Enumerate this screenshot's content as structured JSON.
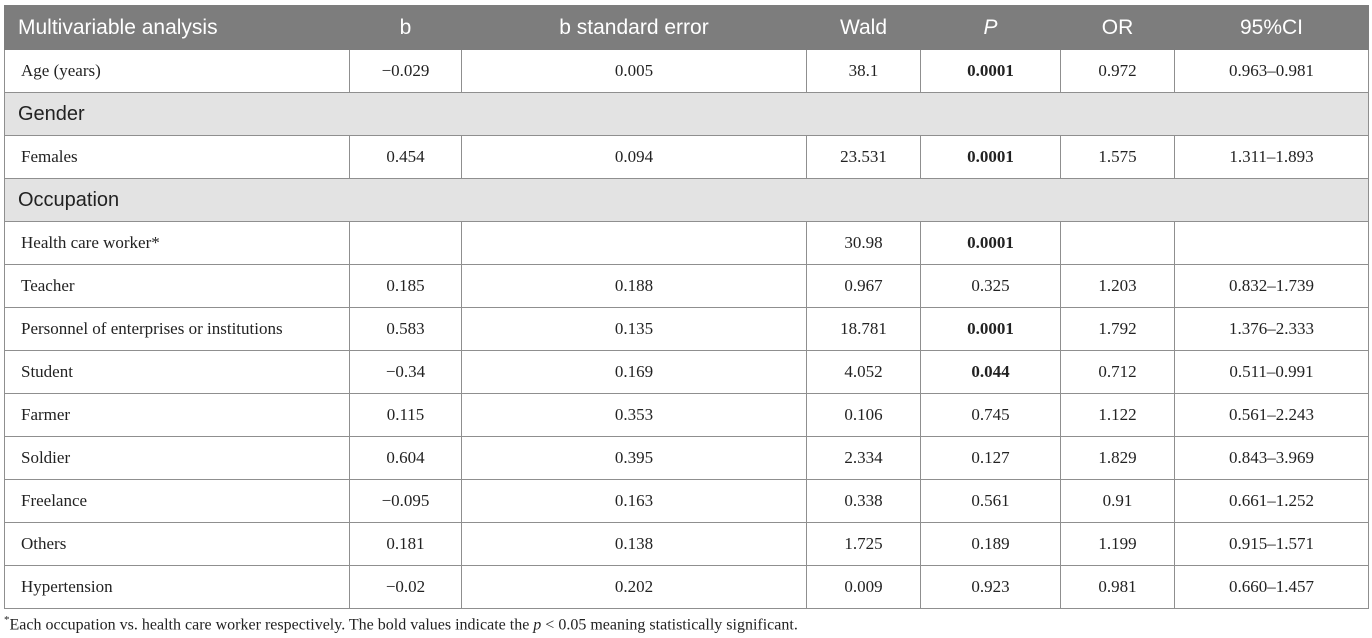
{
  "chart_data": {
    "type": "table",
    "columns": [
      "Multivariable analysis",
      "b",
      "b standard error",
      "Wald",
      "P",
      "OR",
      "95%CI"
    ],
    "rows": [
      {
        "kind": "data",
        "cells": [
          "Age (years)",
          "−0.029",
          "0.005",
          "38.1",
          "0.0001",
          "0.972",
          "0.963–0.981"
        ],
        "bold_p": true
      },
      {
        "kind": "section",
        "label": "Gender"
      },
      {
        "kind": "data",
        "cells": [
          "Females",
          "0.454",
          "0.094",
          "23.531",
          "0.0001",
          "1.575",
          "1.311–1.893"
        ],
        "bold_p": true
      },
      {
        "kind": "section",
        "label": "Occupation"
      },
      {
        "kind": "data",
        "cells": [
          "Health care worker*",
          "",
          "",
          "30.98",
          "0.0001",
          "",
          ""
        ],
        "bold_p": true
      },
      {
        "kind": "data",
        "cells": [
          "Teacher",
          "0.185",
          "0.188",
          "0.967",
          "0.325",
          "1.203",
          "0.832–1.739"
        ],
        "bold_p": false
      },
      {
        "kind": "data",
        "cells": [
          "Personnel of enterprises or institutions",
          "0.583",
          "0.135",
          "18.781",
          "0.0001",
          "1.792",
          "1.376–2.333"
        ],
        "bold_p": true
      },
      {
        "kind": "data",
        "cells": [
          "Student",
          "−0.34",
          "0.169",
          "4.052",
          "0.044",
          "0.712",
          "0.511–0.991"
        ],
        "bold_p": true
      },
      {
        "kind": "data",
        "cells": [
          "Farmer",
          "0.115",
          "0.353",
          "0.106",
          "0.745",
          "1.122",
          "0.561–2.243"
        ],
        "bold_p": false
      },
      {
        "kind": "data",
        "cells": [
          "Soldier",
          "0.604",
          "0.395",
          "2.334",
          "0.127",
          "1.829",
          "0.843–3.969"
        ],
        "bold_p": false
      },
      {
        "kind": "data",
        "cells": [
          "Freelance",
          "−0.095",
          "0.163",
          "0.338",
          "0.561",
          "0.91",
          "0.661–1.252"
        ],
        "bold_p": false
      },
      {
        "kind": "data",
        "cells": [
          "Others",
          "0.181",
          "0.138",
          "1.725",
          "0.189",
          "1.199",
          "0.915–1.571"
        ],
        "bold_p": false
      },
      {
        "kind": "data",
        "cells": [
          "Hypertension",
          "−0.02",
          "0.202",
          "0.009",
          "0.923",
          "0.981",
          "0.660–1.457"
        ],
        "bold_p": false
      }
    ]
  },
  "footnote": {
    "marker": "*",
    "text_before": "Each occupation vs. health care worker respectively. The bold values indicate the ",
    "formula_var": "p",
    "formula_rest": " < 0.05 meaning statistically significant."
  }
}
